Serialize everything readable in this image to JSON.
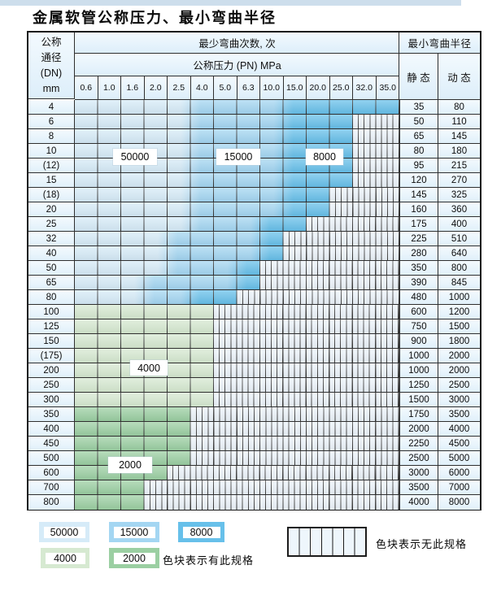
{
  "title": "金属软管公称压力、最小弯曲半径",
  "colors": {
    "b50000": "#d6ebf8",
    "b15000": "#a4d6f2",
    "b8000": "#67c0ea",
    "g4000": "#d6e9d1",
    "g2000": "#9bcfa2",
    "hatch_bg": "#edf4fb",
    "header_bg": "#e3f1fa",
    "border": "#2f2f2f",
    "top_strip": "#cddeec"
  },
  "table": {
    "header": {
      "dn_lines": [
        "公称",
        "通径",
        "(DN)",
        "mm"
      ],
      "bend_cycles": "最少弯曲次数, 次",
      "pressure": "公称压力 (PN) MPa",
      "pressure_cols": [
        "0.6",
        "1.0",
        "1.6",
        "2.0",
        "2.5",
        "4.0",
        "5.0",
        "6.3",
        "10.0",
        "15.0",
        "20.0",
        "25.0",
        "32.0",
        "35.0"
      ],
      "radius": "最小弯曲半径",
      "static_label": "静 态",
      "dynamic_label": "动 态"
    },
    "rows": [
      {
        "dn": "4",
        "static": "35",
        "dynamic": "80",
        "bands": [
          [
            "b50000",
            4
          ],
          [
            "b15000",
            8
          ],
          [
            "b8000",
            13
          ]
        ]
      },
      {
        "dn": "6",
        "static": "50",
        "dynamic": "110",
        "bands": [
          [
            "b50000",
            4
          ],
          [
            "b15000",
            8
          ],
          [
            "b8000",
            11
          ]
        ]
      },
      {
        "dn": "8",
        "static": "65",
        "dynamic": "145",
        "bands": [
          [
            "b50000",
            4
          ],
          [
            "b15000",
            8
          ],
          [
            "b8000",
            11
          ]
        ]
      },
      {
        "dn": "10",
        "static": "80",
        "dynamic": "180",
        "bands": [
          [
            "b50000",
            4
          ],
          [
            "b15000",
            8
          ],
          [
            "b8000",
            11
          ]
        ]
      },
      {
        "dn": "(12)",
        "static": "95",
        "dynamic": "215",
        "bands": [
          [
            "b50000",
            4
          ],
          [
            "b15000",
            8
          ],
          [
            "b8000",
            11
          ]
        ]
      },
      {
        "dn": "15",
        "static": "120",
        "dynamic": "270",
        "bands": [
          [
            "b50000",
            4
          ],
          [
            "b15000",
            8
          ],
          [
            "b8000",
            11
          ]
        ]
      },
      {
        "dn": "(18)",
        "static": "145",
        "dynamic": "325",
        "bands": [
          [
            "b50000",
            4
          ],
          [
            "b15000",
            8
          ],
          [
            "b8000",
            10
          ]
        ]
      },
      {
        "dn": "20",
        "static": "160",
        "dynamic": "360",
        "bands": [
          [
            "b50000",
            4
          ],
          [
            "b15000",
            8
          ],
          [
            "b8000",
            10
          ]
        ]
      },
      {
        "dn": "25",
        "static": "175",
        "dynamic": "400",
        "bands": [
          [
            "b50000",
            4
          ],
          [
            "b15000",
            7
          ],
          [
            "b8000",
            9
          ]
        ]
      },
      {
        "dn": "32",
        "static": "225",
        "dynamic": "510",
        "bands": [
          [
            "b50000",
            3
          ],
          [
            "b15000",
            7
          ],
          [
            "b8000",
            8
          ]
        ]
      },
      {
        "dn": "40",
        "static": "280",
        "dynamic": "640",
        "bands": [
          [
            "b50000",
            3
          ],
          [
            "b15000",
            7
          ],
          [
            "b8000",
            8
          ]
        ]
      },
      {
        "dn": "50",
        "static": "350",
        "dynamic": "800",
        "bands": [
          [
            "b50000",
            3
          ],
          [
            "b15000",
            6
          ],
          [
            "b8000",
            7
          ]
        ]
      },
      {
        "dn": "65",
        "static": "390",
        "dynamic": "845",
        "bands": [
          [
            "b50000",
            2
          ],
          [
            "b15000",
            6
          ],
          [
            "b8000",
            7
          ]
        ]
      },
      {
        "dn": "80",
        "static": "480",
        "dynamic": "1000",
        "bands": [
          [
            "b50000",
            2
          ],
          [
            "b15000",
            4
          ],
          [
            "b8000",
            6
          ]
        ]
      },
      {
        "dn": "100",
        "static": "600",
        "dynamic": "1200",
        "bands": [
          [
            "g4000",
            5
          ]
        ]
      },
      {
        "dn": "125",
        "static": "750",
        "dynamic": "1500",
        "bands": [
          [
            "g4000",
            5
          ]
        ]
      },
      {
        "dn": "150",
        "static": "900",
        "dynamic": "1800",
        "bands": [
          [
            "g4000",
            5
          ]
        ]
      },
      {
        "dn": "(175)",
        "static": "1000",
        "dynamic": "2000",
        "bands": [
          [
            "g4000",
            5
          ]
        ]
      },
      {
        "dn": "200",
        "static": "1000",
        "dynamic": "2000",
        "bands": [
          [
            "g4000",
            5
          ]
        ]
      },
      {
        "dn": "250",
        "static": "1250",
        "dynamic": "2500",
        "bands": [
          [
            "g4000",
            5
          ]
        ]
      },
      {
        "dn": "300",
        "static": "1500",
        "dynamic": "3000",
        "bands": [
          [
            "g4000",
            5
          ]
        ]
      },
      {
        "dn": "350",
        "static": "1750",
        "dynamic": "3500",
        "bands": [
          [
            "g2000",
            4
          ]
        ]
      },
      {
        "dn": "400",
        "static": "2000",
        "dynamic": "4000",
        "bands": [
          [
            "g2000",
            4
          ]
        ]
      },
      {
        "dn": "450",
        "static": "2250",
        "dynamic": "4500",
        "bands": [
          [
            "g2000",
            4
          ]
        ]
      },
      {
        "dn": "500",
        "static": "2500",
        "dynamic": "5000",
        "bands": [
          [
            "g2000",
            4
          ]
        ]
      },
      {
        "dn": "600",
        "static": "3000",
        "dynamic": "6000",
        "bands": [
          [
            "g2000",
            3
          ]
        ]
      },
      {
        "dn": "700",
        "static": "3500",
        "dynamic": "7000",
        "bands": [
          [
            "g2000",
            2
          ]
        ]
      },
      {
        "dn": "800",
        "static": "4000",
        "dynamic": "8000",
        "bands": [
          [
            "g2000",
            2
          ]
        ]
      }
    ]
  },
  "overlay_labels": [
    {
      "text": "50000"
    },
    {
      "text": "15000"
    },
    {
      "text": "8000"
    },
    {
      "text": "4000"
    },
    {
      "text": "2000"
    }
  ],
  "legend": {
    "swatches": [
      {
        "label": "50000",
        "color_key": "b50000"
      },
      {
        "label": "15000",
        "color_key": "b15000"
      },
      {
        "label": "8000",
        "color_key": "b8000"
      },
      {
        "label": "4000",
        "color_key": "g4000"
      },
      {
        "label": "2000",
        "color_key": "g2000"
      }
    ],
    "has_spec_text": "色块表示有此规格",
    "no_spec_text": "色块表示无此规格"
  }
}
